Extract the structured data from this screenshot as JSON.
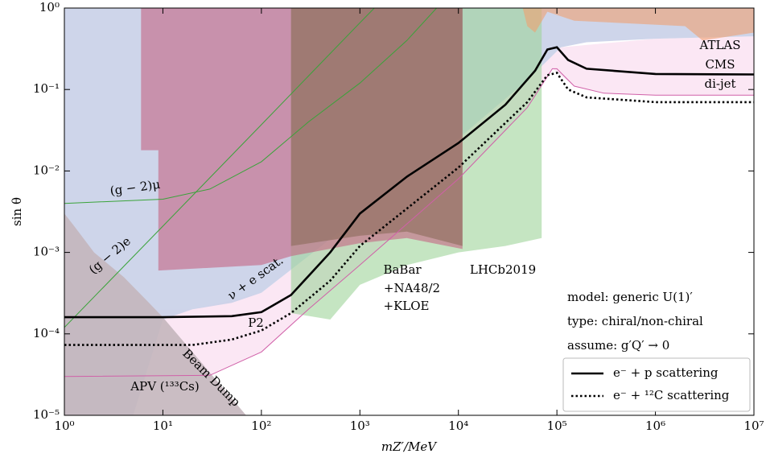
{
  "chart_data": {
    "type": "line",
    "x_label": "mZ′/MeV",
    "y_label": "sin θ",
    "x_log": true,
    "y_log": true,
    "xlim": [
      1,
      10000000
    ],
    "ylim": [
      1e-05,
      1
    ],
    "xticks": [
      {
        "value": 1,
        "label": "10⁰"
      },
      {
        "value": 10,
        "label": "10¹"
      },
      {
        "value": 100,
        "label": "10²"
      },
      {
        "value": 1000,
        "label": "10³"
      },
      {
        "value": 10000,
        "label": "10⁴"
      },
      {
        "value": 100000,
        "label": "10⁵"
      },
      {
        "value": 1000000,
        "label": "10⁶"
      },
      {
        "value": 10000000,
        "label": "10⁷"
      }
    ],
    "yticks": [
      {
        "value": 1e-05,
        "label": "10⁻⁵"
      },
      {
        "value": 0.0001,
        "label": "10⁻⁴"
      },
      {
        "value": 0.001,
        "label": "10⁻³"
      },
      {
        "value": 0.01,
        "label": "10⁻²"
      },
      {
        "value": 0.1,
        "label": "10⁻¹"
      },
      {
        "value": 1,
        "label": "10⁰"
      }
    ],
    "legend": "lower right",
    "legend_notes": [
      "model: generic U(1)′",
      "type: chiral/non-chiral",
      "assume: g′Q′ → 0"
    ],
    "areas": [
      {
        "color": "#fbe4f3",
        "x": [
          1,
          30,
          100,
          300,
          1000,
          10000,
          50000,
          90000,
          150000,
          300000,
          1000000,
          10000000,
          10000000,
          1000000,
          110000,
          50000,
          10000,
          1000,
          100,
          20,
          1
        ],
        "values": [
          3e-05,
          3.1e-05,
          6e-05,
          0.0002,
          0.0007,
          0.008,
          0.06,
          0.18,
          0.11,
          0.09,
          0.085,
          0.085,
          0.45,
          0.42,
          0.33,
          0.13,
          0.025,
          0.0028,
          0.00032,
          0.0002,
          0.00019
        ]
      },
      {
        "color": "#c9d0e8",
        "x": [
          1,
          10000000,
          10000000,
          1000000,
          200000,
          110000,
          50000,
          10000,
          1000,
          300,
          100,
          50,
          20,
          10,
          5,
          1
        ],
        "values": [
          1,
          1,
          0.45,
          0.42,
          0.38,
          0.33,
          0.13,
          0.025,
          0.0028,
          0.0009,
          0.00032,
          0.00024,
          0.0002,
          0.00015,
          1e-05,
          1e-05
        ]
      },
      {
        "color": "#c4b6bd",
        "x": [
          1,
          1.3,
          2,
          4,
          7,
          10,
          13,
          70,
          1
        ],
        "values": [
          0.003,
          0.002,
          0.001,
          0.0005,
          0.00025,
          0.00016,
          0.00011,
          1e-05,
          1e-05
        ]
      },
      {
        "color": "#9fd39a",
        "x": [
          200,
          70000,
          70000,
          30000,
          10000,
          3000,
          1000,
          500,
          200
        ],
        "values": [
          1,
          1,
          0.0015,
          0.0012,
          0.001,
          0.0007,
          0.0004,
          0.00015,
          0.00018
        ]
      },
      {
        "color": "#c46482",
        "x": [
          6,
          11000,
          11000,
          3000,
          1000,
          200,
          100,
          9,
          9,
          6
        ],
        "values": [
          1,
          1,
          0.0011,
          0.0015,
          0.0013,
          0.0009,
          0.0007,
          0.0006,
          0.018,
          0.018
        ]
      },
      {
        "color": "#8b6a5a",
        "x": [
          200,
          11000,
          11000,
          3000,
          1000,
          200
        ],
        "values": [
          1,
          1,
          0.0012,
          0.0018,
          0.0016,
          0.0012
        ]
      },
      {
        "color": "#f0a070",
        "x": [
          45000,
          10000000,
          10000000,
          3000000,
          2000000,
          500000,
          150000,
          80000,
          60000,
          50000
        ],
        "values": [
          1,
          1,
          0.5,
          0.4,
          0.6,
          0.65,
          0.7,
          0.9,
          0.5,
          0.6
        ]
      }
    ],
    "curves": [
      {
        "color": "#3aa33a",
        "x": [
          1,
          10,
          30,
          100,
          300,
          1000,
          3000,
          6000
        ],
        "values": [
          0.004,
          0.0045,
          0.006,
          0.013,
          0.04,
          0.12,
          0.4,
          1
        ]
      },
      {
        "color": "#3aa33a",
        "x": [
          1,
          10,
          100,
          1000,
          1400
        ],
        "values": [
          0.00012,
          0.0021,
          0.037,
          0.66,
          1
        ]
      },
      {
        "color": "#d060a8",
        "x": [
          1,
          30,
          100,
          300,
          1000,
          10000,
          50000,
          90000,
          100000,
          150000,
          300000,
          1000000,
          10000000
        ],
        "values": [
          3e-05,
          3.1e-05,
          6e-05,
          0.0002,
          0.0007,
          0.008,
          0.06,
          0.18,
          0.18,
          0.11,
          0.09,
          0.085,
          0.085
        ]
      }
    ],
    "series": [
      {
        "name": "e⁻ + p scattering",
        "color": "#000000",
        "dash": false,
        "x": [
          1,
          10,
          50,
          100,
          200,
          500,
          1000,
          3000,
          10000,
          30000,
          60000,
          80000,
          100000,
          130000,
          200000,
          1000000,
          10000000
        ],
        "values": [
          0.00016,
          0.00016,
          0.000165,
          0.000185,
          0.0003,
          0.001,
          0.003,
          0.0085,
          0.022,
          0.065,
          0.17,
          0.31,
          0.33,
          0.23,
          0.18,
          0.155,
          0.153
        ]
      },
      {
        "name": "e⁻ + ¹²C scattering",
        "color": "#000000",
        "dash": true,
        "x": [
          1,
          20,
          50,
          100,
          200,
          500,
          1000,
          10000,
          50000,
          80000,
          100000,
          130000,
          200000,
          1000000,
          10000000
        ],
        "values": [
          7.3e-05,
          7.3e-05,
          8.5e-05,
          0.00011,
          0.00018,
          0.00045,
          0.0012,
          0.011,
          0.07,
          0.15,
          0.16,
          0.1,
          0.08,
          0.07,
          0.07
        ]
      }
    ],
    "annotations": [
      {
        "text": "ATLAS",
        "color": "#f08a4b"
      },
      {
        "text": "CMS",
        "color": "#f08a4b"
      },
      {
        "text": "di-jet",
        "color": "#f08a4b"
      },
      {
        "text": "LHCb2019",
        "color": "#3aa33a"
      },
      {
        "text": "BaBar",
        "color": "#d9344f"
      },
      {
        "text": "+NA48/2",
        "color": "#d9344f"
      },
      {
        "text": "+KLOE",
        "color": "#d9344f"
      },
      {
        "text": "ν + e scat.",
        "color": "#4a7ec0"
      },
      {
        "text": "(g − 2)μ",
        "color": "#3aa33a"
      },
      {
        "text": "(g − 2)e",
        "color": "#3aa33a"
      },
      {
        "text": "P2",
        "color": "#000000"
      },
      {
        "text": "Beam Dump",
        "color": "#8b5a4a"
      },
      {
        "text": "APV (¹³³Cs)",
        "color": "#d060a8"
      }
    ]
  }
}
